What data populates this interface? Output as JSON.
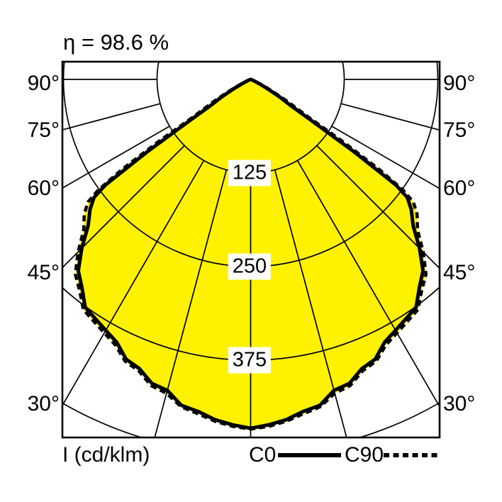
{
  "page": {
    "background": "#FFFFFF"
  },
  "title": "η = 98.6 %",
  "legend": {
    "axis_label": "I (cd/klm)"
  },
  "colors": {
    "fill_yellow": "#FFF200",
    "line_black": "#000000",
    "label_bg": "#FFFFFF"
  },
  "chart_data": {
    "type": "polar_intensity_distribution",
    "title": "η = 98.6 %",
    "efficiency_percent": 98.6,
    "unit": "cd/klm",
    "angle_tick_labels_deg": [
      90,
      75,
      60,
      45,
      30
    ],
    "ring_tick_values": [
      125,
      250,
      375,
      500
    ],
    "ring_tick_labels_shown": [
      "125",
      "250",
      "375"
    ],
    "ray_step_deg": 15,
    "symmetric_mirror": true,
    "gamma_deg": [
      0,
      3,
      6,
      9,
      12,
      15,
      18,
      21,
      24,
      27,
      30,
      33,
      36,
      39,
      42,
      45,
      48,
      51,
      53,
      54,
      55,
      56,
      57,
      59,
      61,
      63,
      66,
      70,
      75,
      90
    ],
    "series": [
      {
        "name": "C0",
        "line": "solid",
        "values_cd_per_klm": [
          466,
          462,
          457,
          449,
          445,
          430,
          427,
          414,
          409,
          394,
          387,
          381,
          376,
          358,
          344,
          319,
          292,
          276,
          262,
          240,
          170,
          95,
          62,
          45,
          26,
          15,
          6,
          2,
          0,
          0
        ]
      },
      {
        "name": "C90",
        "line": "dashed",
        "values_cd_per_klm": [
          467,
          464,
          459,
          452,
          447,
          434,
          430,
          417,
          412,
          398,
          391,
          385,
          380,
          363,
          350,
          326,
          300,
          286,
          272,
          252,
          210,
          148,
          88,
          58,
          36,
          22,
          10,
          4,
          1,
          0
        ]
      }
    ]
  }
}
